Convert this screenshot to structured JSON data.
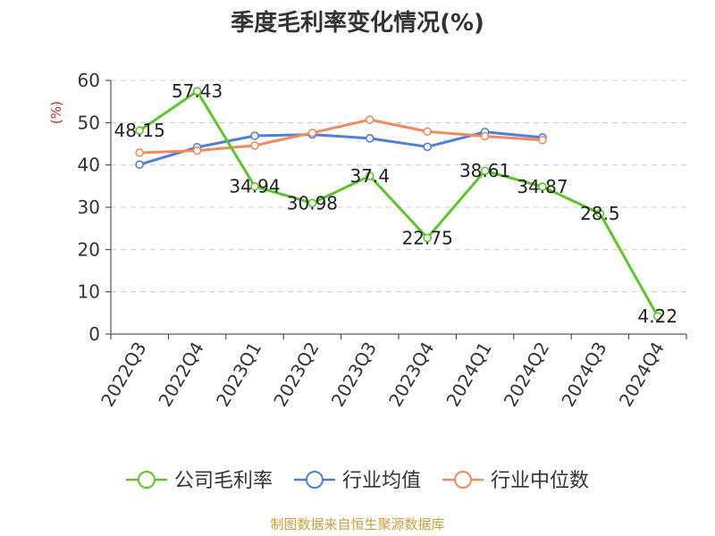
{
  "chart_data": {
    "type": "line",
    "title": "季度毛利率变化情况(%)",
    "ylabel": "(%)",
    "ylim": [
      0,
      60
    ],
    "yticks": [
      0,
      10,
      20,
      30,
      40,
      50,
      60
    ],
    "grid": true,
    "legend_position": "bottom",
    "categories": [
      "2022Q3",
      "2022Q4",
      "2023Q1",
      "2023Q2",
      "2023Q3",
      "2023Q4",
      "2024Q1",
      "2024Q2",
      "2024Q3",
      "2024Q4"
    ],
    "series": [
      {
        "name": "公司毛利率",
        "color": "#5cc629",
        "show_labels": true,
        "values": [
          48.15,
          57.43,
          34.94,
          30.98,
          37.4,
          22.75,
          38.61,
          34.87,
          28.5,
          4.22
        ],
        "labels": [
          "48.15",
          "57.43",
          "34.94",
          "30.98",
          "37.4",
          "22.75",
          "38.61",
          "34.87",
          "28.5",
          "4.22"
        ]
      },
      {
        "name": "行业均值",
        "color": "#4f7fdc",
        "show_labels": false,
        "values": [
          40.1,
          44.2,
          46.9,
          47.2,
          46.3,
          44.3,
          47.8,
          46.5,
          null,
          null
        ]
      },
      {
        "name": "行业中位数",
        "color": "#f28a5b",
        "show_labels": false,
        "values": [
          42.9,
          43.4,
          44.6,
          47.6,
          50.7,
          47.9,
          46.8,
          45.9,
          null,
          null
        ]
      }
    ],
    "source": "制图数据来自恒生聚源数据库",
    "colors": {
      "ylabel": "#d62222",
      "source": "#c8a03c",
      "grid": "#cccccc",
      "axis": "#333333"
    }
  }
}
